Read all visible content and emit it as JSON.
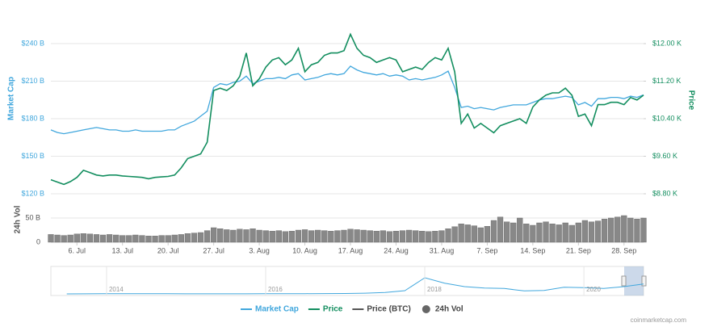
{
  "chart_data": {
    "type": "line",
    "x": [
      "2. Jul",
      "3. Jul",
      "4. Jul",
      "5. Jul",
      "6. Jul",
      "7. Jul",
      "8. Jul",
      "9. Jul",
      "10. Jul",
      "11. Jul",
      "12. Jul",
      "13. Jul",
      "14. Jul",
      "15. Jul",
      "16. Jul",
      "17. Jul",
      "18. Jul",
      "19. Jul",
      "20. Jul",
      "21. Jul",
      "22. Jul",
      "23. Jul",
      "24. Jul",
      "25. Jul",
      "26. Jul",
      "27. Jul",
      "28. Jul",
      "29. Jul",
      "30. Jul",
      "31. Jul",
      "1. Aug",
      "2. Aug",
      "3. Aug",
      "4. Aug",
      "5. Aug",
      "6. Aug",
      "7. Aug",
      "8. Aug",
      "9. Aug",
      "10. Aug",
      "11. Aug",
      "12. Aug",
      "13. Aug",
      "14. Aug",
      "15. Aug",
      "16. Aug",
      "17. Aug",
      "18. Aug",
      "19. Aug",
      "20. Aug",
      "21. Aug",
      "22. Aug",
      "23. Aug",
      "24. Aug",
      "25. Aug",
      "26. Aug",
      "27. Aug",
      "28. Aug",
      "29. Aug",
      "30. Aug",
      "31. Aug",
      "1. Sep",
      "2. Sep",
      "3. Sep",
      "4. Sep",
      "5. Sep",
      "6. Sep",
      "7. Sep",
      "8. Sep",
      "9. Sep",
      "10. Sep",
      "11. Sep",
      "12. Sep",
      "13. Sep",
      "14. Sep",
      "15. Sep",
      "16. Sep",
      "17. Sep",
      "18. Sep",
      "19. Sep",
      "20. Sep",
      "21. Sep",
      "22. Sep",
      "23. Sep",
      "24. Sep",
      "25. Sep",
      "26. Sep",
      "27. Sep",
      "28. Sep",
      "29. Sep",
      "30. Sep",
      "1. Oct"
    ],
    "xticks": [
      "6. Jul",
      "13. Jul",
      "20. Jul",
      "27. Jul",
      "3. Aug",
      "10. Aug",
      "17. Aug",
      "24. Aug",
      "31. Aug",
      "7. Sep",
      "14. Sep",
      "21. Sep",
      "28. Sep"
    ],
    "series": [
      {
        "name": "Market Cap",
        "color": "#41a7dd",
        "axis": "y",
        "values": [
          171,
          169,
          168,
          169,
          170,
          171,
          172,
          173,
          172,
          171,
          171,
          170,
          170,
          171,
          170,
          170,
          170,
          170,
          171,
          171,
          174,
          176,
          178,
          182,
          186,
          205,
          208,
          207,
          209,
          210,
          214,
          208,
          210,
          212,
          212,
          213,
          212,
          215,
          216,
          211,
          212,
          213,
          215,
          216,
          215,
          216,
          222,
          219,
          217,
          216,
          215,
          216,
          214,
          215,
          214,
          211,
          212,
          211,
          212,
          213,
          215,
          218,
          205,
          189,
          190,
          188,
          189,
          188,
          187,
          189,
          190,
          191,
          191,
          191,
          193,
          195,
          196,
          196,
          197,
          198,
          197,
          191,
          193,
          190,
          196,
          196,
          197,
          197,
          196,
          198,
          197,
          199
        ]
      },
      {
        "name": "Price",
        "color": "#138e5f",
        "axis": "y2",
        "values": [
          9100,
          9050,
          9000,
          9060,
          9150,
          9300,
          9250,
          9200,
          9180,
          9200,
          9200,
          9180,
          9170,
          9160,
          9150,
          9120,
          9150,
          9160,
          9170,
          9200,
          9350,
          9550,
          9600,
          9650,
          9900,
          11000,
          11050,
          11000,
          11100,
          11300,
          11800,
          11100,
          11250,
          11500,
          11650,
          11700,
          11550,
          11650,
          11900,
          11400,
          11550,
          11600,
          11750,
          11800,
          11800,
          11850,
          12200,
          11900,
          11750,
          11700,
          11600,
          11650,
          11700,
          11650,
          11400,
          11450,
          11500,
          11450,
          11600,
          11700,
          11650,
          11900,
          11400,
          10300,
          10500,
          10200,
          10300,
          10200,
          10100,
          10250,
          10300,
          10350,
          10400,
          10300,
          10650,
          10800,
          10900,
          10950,
          10950,
          11050,
          10900,
          10450,
          10500,
          10250,
          10700,
          10700,
          10750,
          10750,
          10700,
          10850,
          10800,
          10900
        ]
      },
      {
        "name": "Price (BTC)",
        "color": "#555555"
      },
      {
        "name": "24h Vol",
        "color": "#888888",
        "axis": "vol",
        "values": [
          16,
          15,
          14,
          15,
          17,
          18,
          17,
          16,
          15,
          16,
          15,
          14,
          14,
          15,
          14,
          13,
          13,
          14,
          14,
          15,
          16,
          18,
          19,
          20,
          24,
          30,
          28,
          26,
          25,
          27,
          26,
          28,
          25,
          24,
          23,
          24,
          22,
          23,
          25,
          26,
          24,
          25,
          24,
          23,
          24,
          25,
          27,
          26,
          25,
          24,
          23,
          24,
          22,
          23,
          24,
          25,
          24,
          23,
          22,
          23,
          24,
          28,
          32,
          38,
          36,
          34,
          30,
          33,
          45,
          52,
          42,
          40,
          50,
          38,
          35,
          40,
          42,
          38,
          36,
          40,
          35,
          40,
          45,
          42,
          44,
          48,
          50,
          52,
          55,
          50,
          48,
          50
        ]
      }
    ],
    "y_label": "Market Cap",
    "ylim": [
      120,
      240
    ],
    "yticks": [
      {
        "value": 120,
        "label": "$120 B"
      },
      {
        "value": 150,
        "label": "$150 B"
      },
      {
        "value": 180,
        "label": "$180 B"
      },
      {
        "value": 210,
        "label": "$210 B"
      },
      {
        "value": 240,
        "label": "$240 B"
      }
    ],
    "y2_label": "Price",
    "y2lim": [
      8800,
      12000
    ],
    "y2ticks": [
      {
        "value": 8800,
        "label": "$8.80 K"
      },
      {
        "value": 9600,
        "label": "$9.60 K"
      },
      {
        "value": 10400,
        "label": "$10.40 K"
      },
      {
        "value": 11200,
        "label": "$11.20 K"
      },
      {
        "value": 12000,
        "label": "$12.00 K"
      }
    ],
    "vol_label": "24h Vol",
    "vollim": [
      0,
      80
    ],
    "volticks": [
      0,
      {
        "value": 50,
        "label": "50 B"
      }
    ],
    "grid": true,
    "navigator": {
      "x": [
        2013.5,
        2013.75,
        2014,
        2014.25,
        2014.5,
        2014.75,
        2015,
        2015.25,
        2015.5,
        2015.75,
        2016,
        2016.25,
        2016.5,
        2016.75,
        2017,
        2017.25,
        2017.5,
        2017.75,
        2018,
        2018.25,
        2018.5,
        2018.75,
        2019,
        2019.25,
        2019.5,
        2019.75,
        2020,
        2020.25,
        2020.5,
        2020.75
      ],
      "values": [
        1,
        2,
        10,
        8,
        6,
        5,
        4,
        3,
        4,
        4,
        5,
        7,
        9,
        11,
        15,
        26,
        50,
        120,
        600,
        400,
        270,
        220,
        200,
        110,
        130,
        250,
        230,
        200,
        270,
        370
      ],
      "xlim": [
        2013.3,
        2020.75
      ],
      "ylim": [
        0,
        900
      ],
      "xticks": [
        2014,
        2016,
        2018,
        2020
      ],
      "color": "#41a7dd"
    },
    "credit": "coinmarketcap.com"
  }
}
